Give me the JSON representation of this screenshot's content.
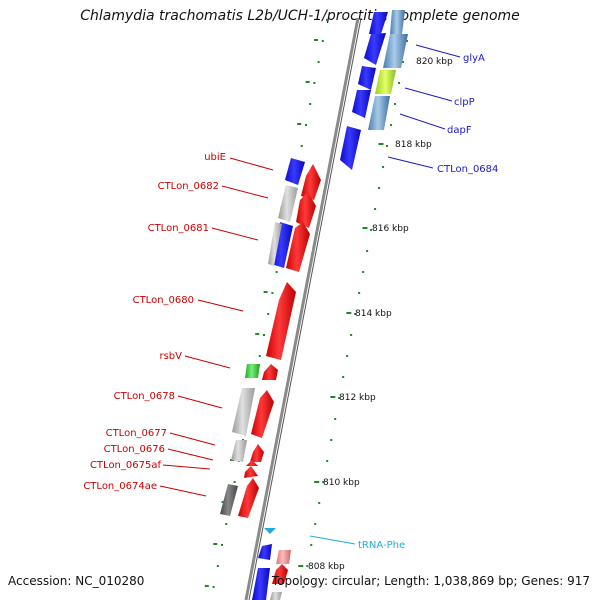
{
  "header": {
    "title": "Chlamydia trachomatis L2b/UCH-1/proctitis, complete genome"
  },
  "footer": {
    "accession": "Accession: NC_010280",
    "summary": "Topology: circular; Length: 1,038,869 bp; Genes: 917"
  },
  "scale": {
    "ticks": [
      {
        "label": "808 kbp"
      },
      {
        "label": "810 kbp"
      },
      {
        "label": "812 kbp"
      },
      {
        "label": "814 kbp"
      },
      {
        "label": "816 kbp"
      },
      {
        "label": "818 kbp"
      },
      {
        "label": "820 kbp"
      }
    ]
  },
  "genes_forward": [
    {
      "label": "glyA"
    },
    {
      "label": "clpP"
    },
    {
      "label": "dapF"
    },
    {
      "label": "CTLon_0684"
    }
  ],
  "genes_reverse": [
    {
      "label": "ubiE"
    },
    {
      "label": "CTLon_0682"
    },
    {
      "label": "CTLon_0681"
    },
    {
      "label": "CTLon_0680"
    },
    {
      "label": "rsbV"
    },
    {
      "label": "CTLon_0678"
    },
    {
      "label": "CTLon_0677"
    },
    {
      "label": "CTLon_0676"
    },
    {
      "label": "CTLon_0675af"
    },
    {
      "label": "CTLon_0674ae"
    }
  ],
  "rna": [
    {
      "label": "tRNA-Phe"
    }
  ],
  "colors": {
    "forward_gene": "#1010ee",
    "reverse_cds": "#ee1111",
    "forward_label": "#1a1acc",
    "reverse_label": "#cc0000",
    "rna_label": "#22aadd",
    "tick": "#228822",
    "backbone": "#777777"
  }
}
